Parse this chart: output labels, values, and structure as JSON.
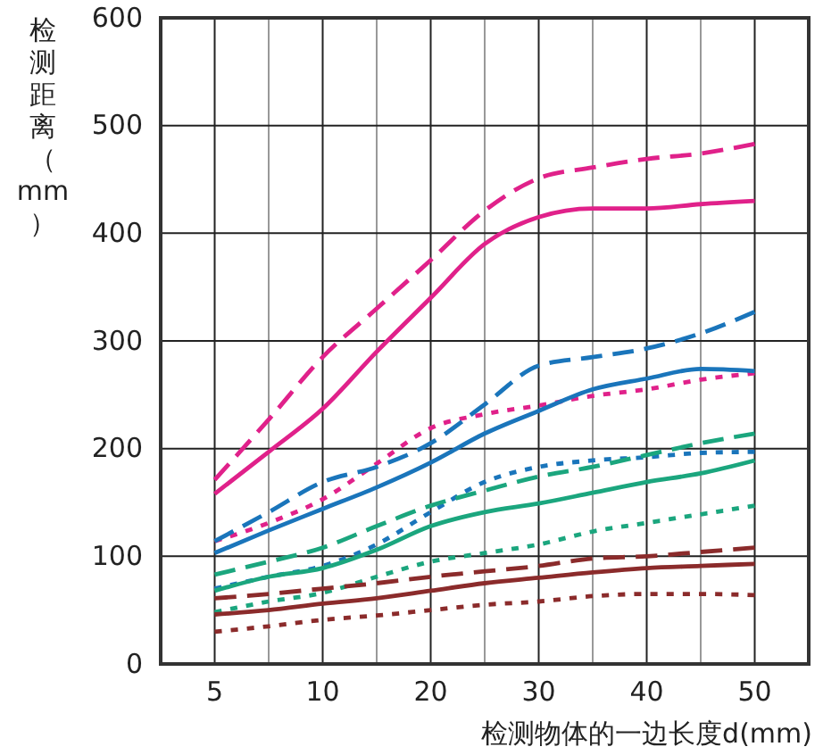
{
  "chart_data": {
    "type": "line",
    "xlabel": "检测物体的一边长度d(mm)",
    "ylabel": "检测距离（mm）",
    "categories": [
      "5",
      null,
      "10",
      null,
      "20",
      null,
      "30",
      null,
      "40",
      null,
      "50"
    ],
    "ylim": [
      0,
      600
    ],
    "yticks": [
      0,
      100,
      200,
      300,
      400,
      500,
      600
    ],
    "grid": true,
    "marker": "none",
    "series": [
      {
        "color": "#e0218a",
        "line_style": "dashed",
        "values": [
          171,
          227,
          285,
          330,
          375,
          421,
          451,
          461,
          469,
          474,
          483
        ]
      },
      {
        "color": "#e0218a",
        "line_style": "solid",
        "values": [
          158,
          197,
          237,
          290,
          340,
          390,
          415,
          423,
          423,
          427,
          430
        ]
      },
      {
        "color": "#e0218a",
        "line_style": "dotted",
        "values": [
          114,
          131,
          153,
          186,
          219,
          232,
          240,
          249,
          255,
          264,
          270
        ]
      },
      {
        "color": "#1a75bb",
        "line_style": "dashed",
        "values": [
          114,
          141,
          169,
          183,
          205,
          241,
          277,
          285,
          293,
          307,
          327
        ]
      },
      {
        "color": "#1a75bb",
        "line_style": "solid",
        "values": [
          103,
          124,
          144,
          164,
          187,
          214,
          235,
          255,
          265,
          274,
          272
        ]
      },
      {
        "color": "#1a75bb",
        "line_style": "dotted",
        "values": [
          70,
          81,
          91,
          111,
          141,
          169,
          183,
          189,
          192,
          196,
          197
        ]
      },
      {
        "color": "#1ba67e",
        "line_style": "dashed",
        "values": [
          83,
          95,
          108,
          128,
          147,
          161,
          174,
          183,
          194,
          205,
          214
        ]
      },
      {
        "color": "#1ba67e",
        "line_style": "solid",
        "values": [
          68,
          81,
          89,
          106,
          128,
          141,
          149,
          159,
          169,
          177,
          189
        ]
      },
      {
        "color": "#1ba67e",
        "line_style": "dotted",
        "values": [
          48,
          58,
          66,
          81,
          95,
          103,
          111,
          123,
          131,
          139,
          147
        ]
      },
      {
        "color": "#8b2b2b",
        "line_style": "dashed",
        "values": [
          61,
          65,
          70,
          75,
          81,
          86,
          91,
          98,
          100,
          104,
          108
        ]
      },
      {
        "color": "#8b2b2b",
        "line_style": "solid",
        "values": [
          46,
          50,
          56,
          61,
          68,
          75,
          80,
          85,
          89,
          91,
          93
        ]
      },
      {
        "color": "#8b2b2b",
        "line_style": "dotted",
        "values": [
          30,
          35,
          41,
          45,
          50,
          55,
          58,
          63,
          65,
          65,
          64
        ]
      }
    ]
  }
}
